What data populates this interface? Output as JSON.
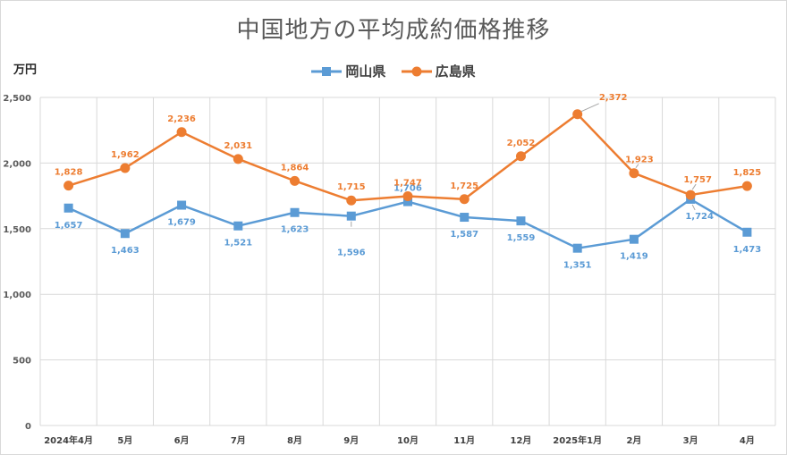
{
  "chart_data": {
    "type": "line",
    "title": "中国地方の平均成約価格推移",
    "ylabel": "万円",
    "xlabel": "",
    "categories": [
      "2024年4月",
      "5月",
      "6月",
      "7月",
      "8月",
      "9月",
      "10月",
      "11月",
      "12月",
      "2025年1月",
      "2月",
      "3月",
      "4月"
    ],
    "series": [
      {
        "name": "岡山県",
        "values": [
          1657,
          1463,
          1679,
          1521,
          1623,
          1596,
          1706,
          1587,
          1559,
          1351,
          1419,
          1724,
          1473
        ],
        "color": "#5b9bd5",
        "marker": "square"
      },
      {
        "name": "広島県",
        "values": [
          1828,
          1962,
          2236,
          2031,
          1864,
          1715,
          1747,
          1725,
          2052,
          2372,
          1923,
          1757,
          1825
        ],
        "color": "#ed7d31",
        "marker": "circle"
      }
    ],
    "ylim": [
      0,
      2500
    ],
    "yticks": [
      0,
      500,
      1000,
      1500,
      2000,
      2500
    ],
    "ytick_labels": [
      "0",
      "500",
      "1,000",
      "1,500",
      "2,000",
      "2,500"
    ],
    "data_labels": {
      "岡山県": [
        "1,657",
        "1,463",
        "1,679",
        "1,521",
        "1,623",
        "1,596",
        "1,706",
        "1,587",
        "1,559",
        "1,351",
        "1,419",
        "1,724",
        "1,473"
      ],
      "広島県": [
        "1,828",
        "1,962",
        "2,236",
        "2,031",
        "1,864",
        "1,715",
        "1,747",
        "1,725",
        "2,052",
        "2,372",
        "1,923",
        "1,757",
        "1,825"
      ]
    },
    "grid": true,
    "legend_position": "top-center"
  }
}
